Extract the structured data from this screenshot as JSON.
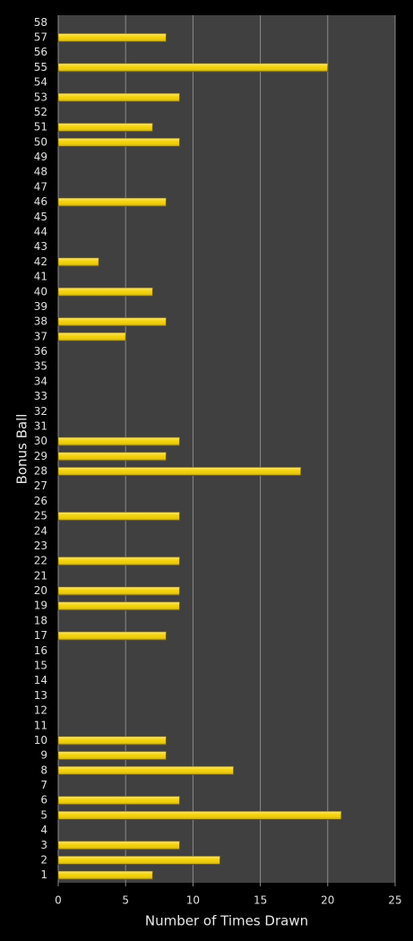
{
  "chart_data": {
    "type": "bar",
    "orientation": "horizontal",
    "x_label": "Number of Times Drawn",
    "y_label": "Bonus Ball",
    "categories": [
      "1",
      "2",
      "3",
      "4",
      "5",
      "6",
      "7",
      "8",
      "9",
      "10",
      "11",
      "12",
      "13",
      "14",
      "15",
      "16",
      "17",
      "18",
      "19",
      "20",
      "21",
      "22",
      "23",
      "24",
      "25",
      "26",
      "27",
      "28",
      "29",
      "30",
      "31",
      "32",
      "33",
      "34",
      "35",
      "36",
      "37",
      "38",
      "39",
      "40",
      "41",
      "42",
      "43",
      "44",
      "45",
      "46",
      "47",
      "48",
      "49",
      "50",
      "51",
      "52",
      "53",
      "54",
      "55",
      "56",
      "57",
      "58"
    ],
    "values": [
      7,
      12,
      9,
      0,
      21,
      9,
      0,
      13,
      8,
      8,
      0,
      0,
      0,
      0,
      0,
      0,
      8,
      0,
      9,
      9,
      0,
      9,
      0,
      0,
      9,
      0,
      0,
      18,
      8,
      9,
      0,
      0,
      0,
      0,
      0,
      0,
      5,
      8,
      0,
      7,
      0,
      3,
      0,
      0,
      0,
      8,
      0,
      0,
      0,
      9,
      7,
      0,
      9,
      0,
      20,
      0,
      8,
      0
    ],
    "color": "#f2d000",
    "xlim": [
      0,
      25
    ],
    "xticks": [
      0,
      5,
      10,
      15,
      20,
      25
    ],
    "grid": true
  }
}
